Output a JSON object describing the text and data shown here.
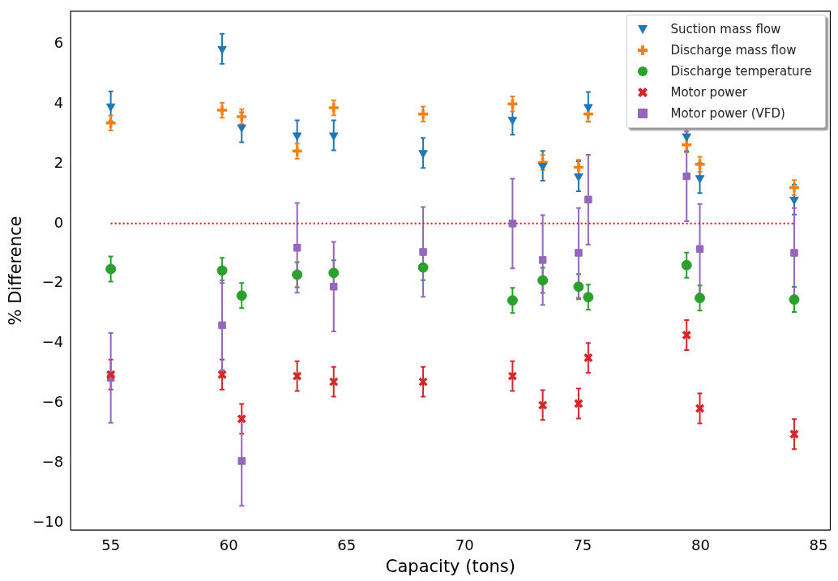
{
  "chart_data": {
    "type": "scatter",
    "xlabel": "Capacity (tons)",
    "ylabel": "% Difference",
    "xlim": [
      53.3,
      85.5
    ],
    "xticks": [
      55,
      60,
      65,
      70,
      75,
      80,
      85
    ],
    "ylim": [
      -10.25,
      7.1
    ],
    "yticks": [
      -10,
      -8,
      -6,
      -4,
      -2,
      0,
      2,
      4,
      6
    ],
    "grid": false,
    "legend": "top right",
    "x": [
      55,
      59.72,
      60.55,
      62.9,
      64.45,
      68.24,
      72.03,
      73.31,
      74.83,
      75.24,
      79.41,
      79.97,
      83.97
    ],
    "series": [
      {
        "name": "Suction mass flow",
        "color": "#1f77b4",
        "marker": "triangle",
        "values": [
          3.92,
          5.84,
          3.22,
          2.95,
          2.95,
          2.36,
          3.47,
          1.93,
          1.58,
          3.9,
          2.92,
          1.52,
          0.8
        ],
        "errors": [
          0.5,
          0.5,
          0.5,
          0.5,
          0.5,
          0.5,
          0.5,
          0.5,
          0.5,
          0.5,
          0.5,
          0.5,
          0.5
        ]
      },
      {
        "name": "Discharge mass flow",
        "color": "#ff7f0e",
        "marker": "cross",
        "values": [
          3.36,
          3.79,
          3.57,
          2.42,
          3.87,
          3.66,
          4.0,
          2.04,
          1.88,
          3.66,
          2.63,
          1.98,
          1.2
        ],
        "errors": [
          0.25,
          0.25,
          0.25,
          0.25,
          0.25,
          0.25,
          0.25,
          0.25,
          0.25,
          0.25,
          0.25,
          0.25,
          0.25
        ]
      },
      {
        "name": "Discharge temperature",
        "color": "#2ca02c",
        "marker": "circle",
        "values": [
          -1.52,
          -1.57,
          -2.41,
          -1.71,
          -1.65,
          -1.47,
          -2.57,
          -1.9,
          -2.11,
          -2.46,
          -1.39,
          -2.49,
          -2.54
        ],
        "errors": [
          0.42,
          0.42,
          0.42,
          0.42,
          0.42,
          0.42,
          0.42,
          0.42,
          0.42,
          0.42,
          0.42,
          0.42,
          0.42
        ]
      },
      {
        "name": "Motor power",
        "color": "#d62728",
        "marker": "x",
        "values": [
          -5.05,
          -5.05,
          -6.53,
          -5.1,
          -5.29,
          -5.29,
          -5.1,
          -6.07,
          -6.02,
          -4.49,
          -3.73,
          -6.18,
          -7.04
        ],
        "errors": [
          0.5,
          0.5,
          0.5,
          0.5,
          0.5,
          0.5,
          0.5,
          0.5,
          0.5,
          0.5,
          0.5,
          0.5,
          0.5
        ]
      },
      {
        "name": "Motor power (VFD)",
        "color": "#9467bd",
        "marker": "square",
        "values": [
          -5.16,
          -3.4,
          -7.94,
          -0.81,
          -2.11,
          -0.95,
          0.0,
          -1.22,
          -0.98,
          0.8,
          1.58,
          -0.85,
          -0.98
        ],
        "errors": [
          1.5,
          1.5,
          1.5,
          1.5,
          1.5,
          1.5,
          1.5,
          1.5,
          1.5,
          1.5,
          1.5,
          1.5,
          1.5
        ]
      },
      {
        "type": "line",
        "color": "#ff0000",
        "line_style": "dotted",
        "marker": "none",
        "x": [
          55,
          83.97
        ],
        "values": [
          0,
          0
        ]
      }
    ]
  }
}
